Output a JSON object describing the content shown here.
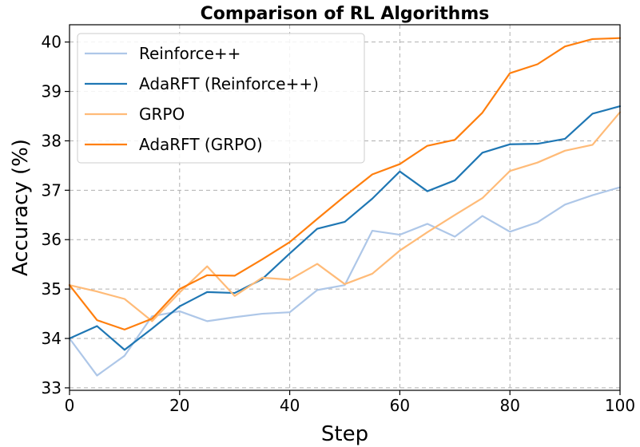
{
  "chart_data": {
    "type": "line",
    "title": "Comparison of RL Algorithms",
    "xlabel": "Step",
    "ylabel": "Accuracy (%)",
    "xlim": [
      0,
      100
    ],
    "ylim": [
      32.95,
      40.35
    ],
    "xticks": [
      0,
      20,
      40,
      60,
      80,
      100
    ],
    "yticks": [
      33,
      34,
      35,
      36,
      37,
      38,
      39,
      40
    ],
    "grid": true,
    "legend_position": "top-left",
    "x": [
      0,
      5,
      10,
      15,
      20,
      25,
      30,
      35,
      40,
      45,
      50,
      55,
      60,
      65,
      70,
      75,
      80,
      85,
      90,
      95,
      100
    ],
    "series": [
      {
        "name": "Reinforce++",
        "color": "#aec7e8",
        "values": [
          34.0,
          33.25,
          33.65,
          34.45,
          34.55,
          34.35,
          34.43,
          34.5,
          34.53,
          34.98,
          35.08,
          36.18,
          36.1,
          36.32,
          36.06,
          36.48,
          36.16,
          36.35,
          36.71,
          36.9,
          37.06
        ]
      },
      {
        "name": "AdaRFT (Reinforce++)",
        "color": "#1f77b4",
        "values": [
          34.0,
          34.25,
          33.77,
          34.2,
          34.65,
          34.94,
          34.92,
          35.2,
          35.72,
          36.22,
          36.36,
          36.83,
          37.38,
          36.98,
          37.2,
          37.76,
          37.93,
          37.94,
          38.04,
          38.55,
          38.7
        ]
      },
      {
        "name": "GRPO",
        "color": "#ffbb78",
        "values": [
          35.08,
          34.95,
          34.8,
          34.35,
          34.93,
          35.46,
          34.86,
          35.23,
          35.19,
          35.51,
          35.1,
          35.31,
          35.78,
          36.15,
          36.5,
          36.84,
          37.39,
          37.56,
          37.8,
          37.92,
          38.58
        ]
      },
      {
        "name": "AdaRFT (GRPO)",
        "color": "#ff7f0e",
        "values": [
          35.08,
          34.37,
          34.18,
          34.4,
          35.0,
          35.28,
          35.27,
          35.6,
          35.95,
          36.42,
          36.88,
          37.32,
          37.53,
          37.9,
          38.02,
          38.57,
          39.37,
          39.55,
          39.91,
          40.06,
          40.08
        ]
      }
    ]
  }
}
